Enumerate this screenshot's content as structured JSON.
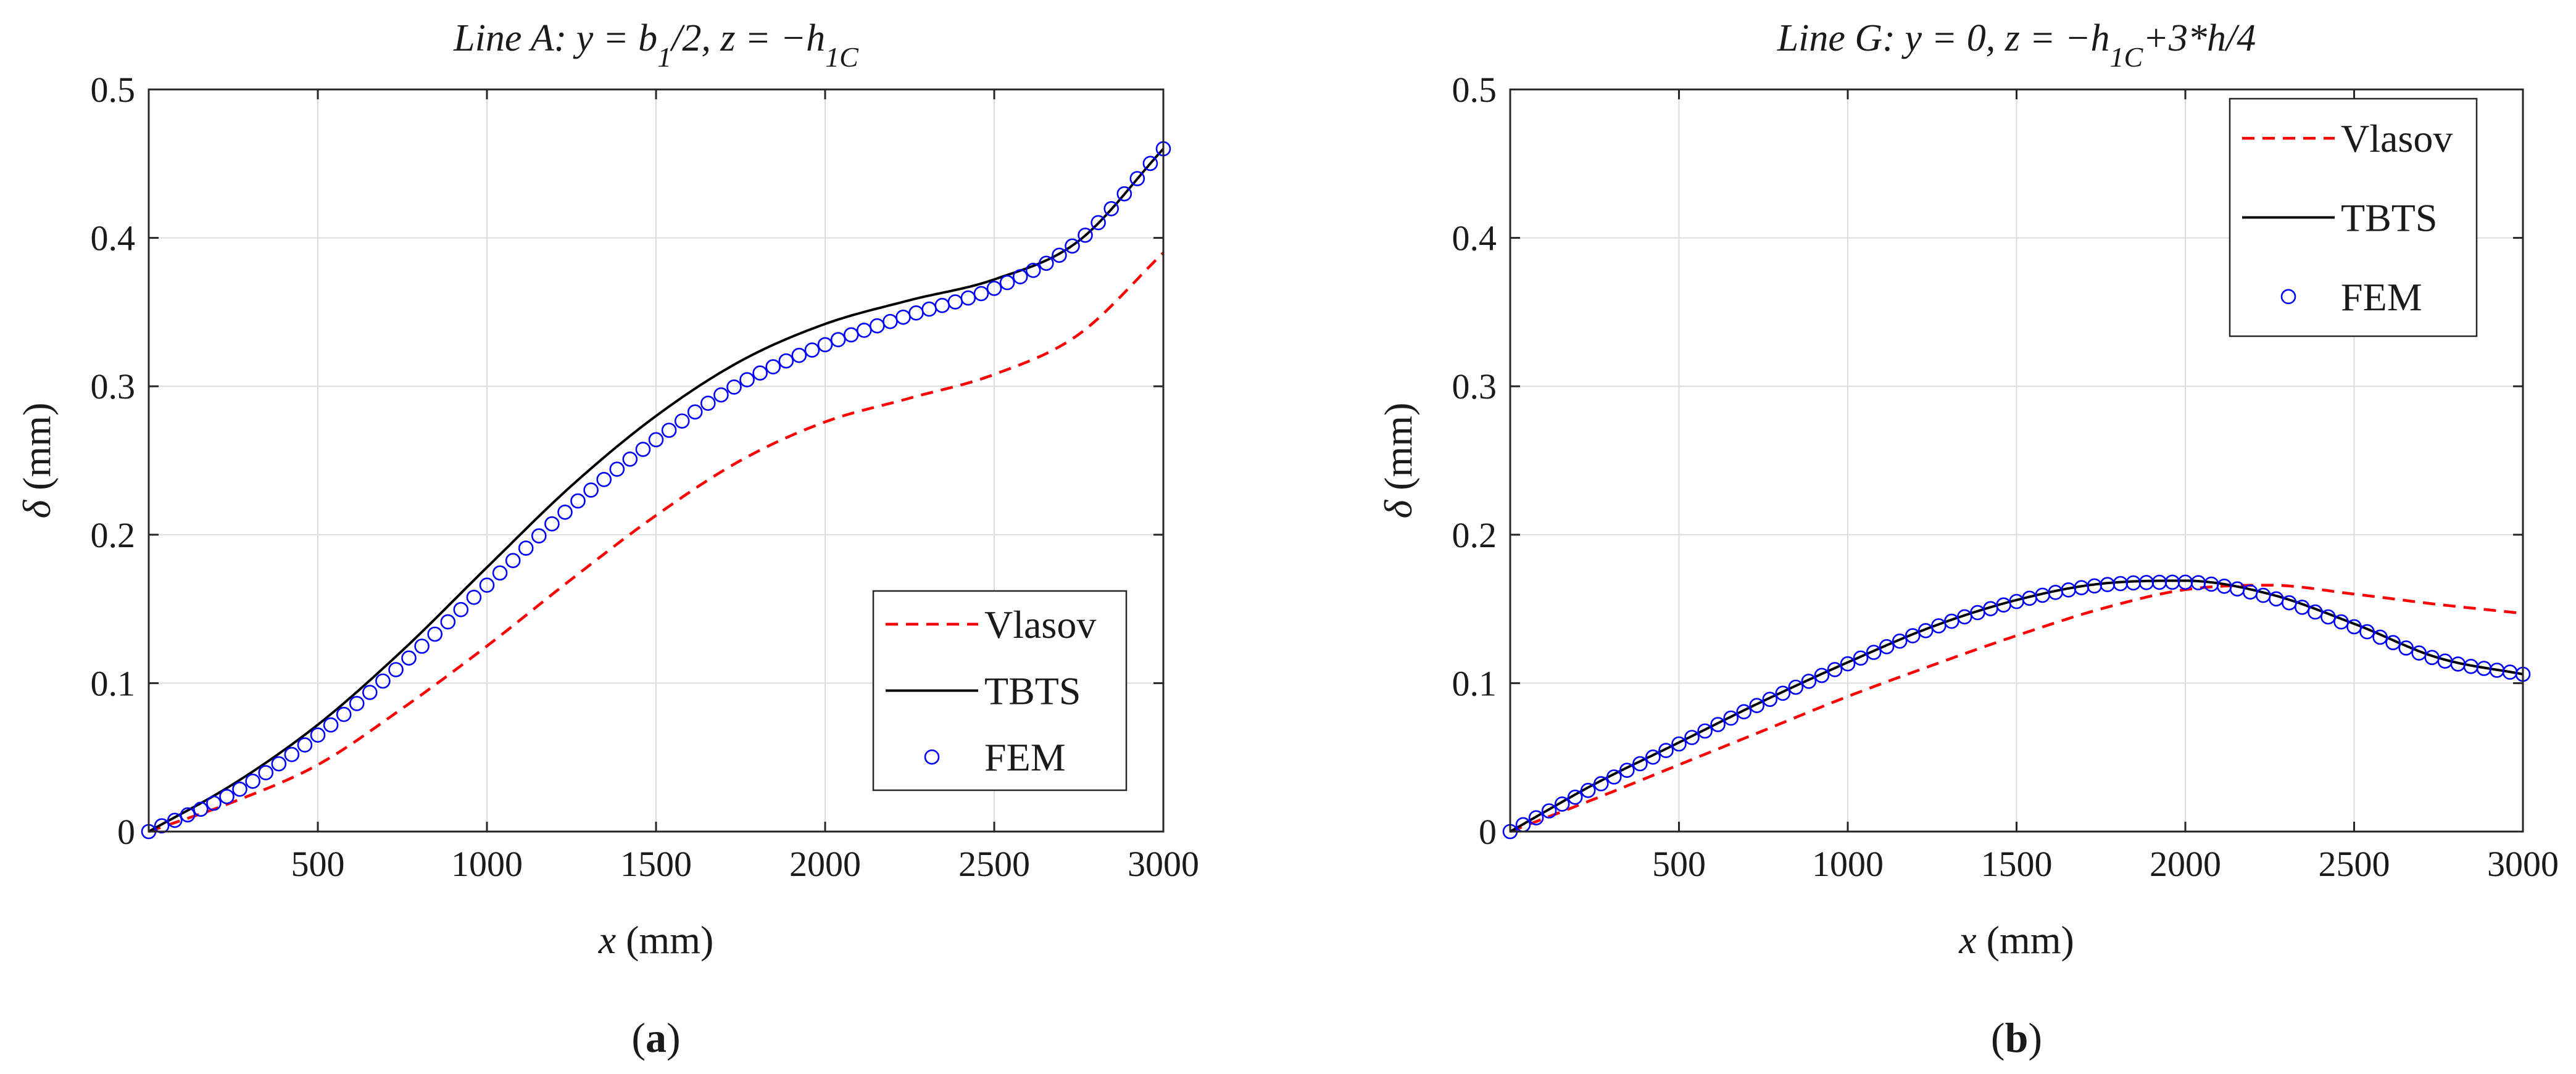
{
  "chart_data": [
    {
      "type": "line",
      "panel_label": {
        "open": "(",
        "letter": "a",
        "close": ")"
      },
      "title": {
        "main": "Line A: y = b",
        "sub1": "1",
        "mid": "/2, z = −h",
        "sub2": "1C"
      },
      "xlabel": {
        "var": "x",
        "unit": " (mm)"
      },
      "ylabel": {
        "var": "δ",
        "unit": " (mm)"
      },
      "xlim": [
        0,
        3000
      ],
      "ylim": [
        0,
        0.5
      ],
      "xticks": [
        500,
        1000,
        1500,
        2000,
        2500,
        3000
      ],
      "yticks": [
        0,
        0.1,
        0.2,
        0.3,
        0.4,
        0.5
      ],
      "xtick_labels": [
        "500",
        "1000",
        "1500",
        "2000",
        "2500",
        "3000"
      ],
      "ytick_labels": [
        "0",
        "0.1",
        "0.2",
        "0.3",
        "0.4",
        "0.5"
      ],
      "grid": true,
      "legend_position": "lower-right",
      "series": [
        {
          "name": "Vlasov",
          "style": "dashed",
          "color": "#ff0000",
          "x": [
            0,
            250,
            500,
            750,
            1000,
            1250,
            1500,
            1750,
            2000,
            2250,
            2500,
            2750,
            3000
          ],
          "values": [
            0,
            0.02,
            0.045,
            0.083,
            0.125,
            0.17,
            0.213,
            0.25,
            0.276,
            0.292,
            0.308,
            0.335,
            0.39
          ]
        },
        {
          "name": "TBTS",
          "style": "solid",
          "color": "#000000",
          "x": [
            0,
            250,
            500,
            750,
            1000,
            1250,
            1500,
            1750,
            2000,
            2250,
            2500,
            2750,
            3000
          ],
          "values": [
            0,
            0.032,
            0.072,
            0.122,
            0.178,
            0.233,
            0.28,
            0.317,
            0.342,
            0.358,
            0.372,
            0.398,
            0.46
          ]
        },
        {
          "name": "FEM",
          "style": "markers",
          "marker": "circle",
          "color": "#0000ff",
          "x": [
            0,
            250,
            500,
            750,
            1000,
            1250,
            1500,
            1750,
            2000,
            2250,
            2500,
            2750,
            3000
          ],
          "values": [
            0,
            0.026,
            0.065,
            0.113,
            0.166,
            0.219,
            0.264,
            0.302,
            0.328,
            0.348,
            0.366,
            0.398,
            0.46
          ]
        }
      ]
    },
    {
      "type": "line",
      "panel_label": {
        "open": "(",
        "letter": "b",
        "close": ")"
      },
      "title": {
        "main": "Line G: y = 0, z = −h",
        "sub1": "1C",
        "rest": "+3*h/4"
      },
      "xlabel": {
        "var": "x",
        "unit": " (mm)"
      },
      "ylabel": {
        "var": "δ",
        "unit": " (mm)"
      },
      "xlim": [
        0,
        3000
      ],
      "ylim": [
        0,
        0.5
      ],
      "xticks": [
        500,
        1000,
        1500,
        2000,
        2500,
        3000
      ],
      "yticks": [
        0,
        0.1,
        0.2,
        0.3,
        0.4,
        0.5
      ],
      "xtick_labels": [
        "500",
        "1000",
        "1500",
        "2000",
        "2500",
        "3000"
      ],
      "ytick_labels": [
        "0",
        "0.1",
        "0.2",
        "0.3",
        "0.4",
        "0.5"
      ],
      "grid": true,
      "legend_position": "top-right",
      "series": [
        {
          "name": "Vlasov",
          "style": "dashed",
          "color": "#ff0000",
          "x": [
            0,
            250,
            500,
            750,
            1000,
            1250,
            1500,
            1750,
            2000,
            2250,
            2500,
            2750,
            3000
          ],
          "values": [
            0,
            0.022,
            0.045,
            0.068,
            0.091,
            0.112,
            0.132,
            0.15,
            0.163,
            0.166,
            0.16,
            0.153,
            0.147
          ]
        },
        {
          "name": "TBTS",
          "style": "solid",
          "color": "#000000",
          "x": [
            0,
            250,
            500,
            750,
            1000,
            1250,
            1500,
            1750,
            2000,
            2250,
            2500,
            2750,
            3000
          ],
          "values": [
            0,
            0.032,
            0.06,
            0.088,
            0.114,
            0.138,
            0.156,
            0.167,
            0.169,
            0.16,
            0.14,
            0.117,
            0.106
          ]
        },
        {
          "name": "FEM",
          "style": "markers",
          "marker": "circle",
          "color": "#0000ff",
          "x": [
            0,
            250,
            500,
            750,
            1000,
            1250,
            1500,
            1750,
            2000,
            2250,
            2500,
            2750,
            3000
          ],
          "values": [
            0,
            0.03,
            0.059,
            0.087,
            0.113,
            0.137,
            0.155,
            0.166,
            0.168,
            0.158,
            0.138,
            0.116,
            0.106
          ]
        }
      ]
    }
  ]
}
